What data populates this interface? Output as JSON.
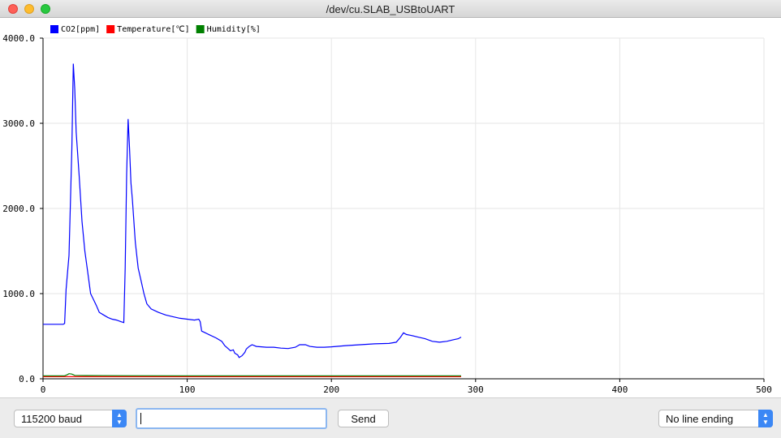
{
  "window": {
    "title": "/dev/cu.SLAB_USBtoUART"
  },
  "controls": {
    "baud": "115200 baud",
    "send_label": "Send",
    "input_value": "",
    "line_ending": "No line ending"
  },
  "chart_data": {
    "type": "line",
    "xlim": [
      0,
      500
    ],
    "ylim": [
      0,
      4000
    ],
    "x_ticks": [
      "0",
      "100",
      "200",
      "300",
      "400",
      "500"
    ],
    "y_ticks": [
      "0.0",
      "1000.0",
      "2000.0",
      "3000.0",
      "4000.0"
    ],
    "y_tick_values": [
      0,
      1000,
      2000,
      3000,
      4000
    ],
    "x_tick_values": [
      0,
      100,
      200,
      300,
      400,
      500
    ],
    "grid": true,
    "legend_position": "top-left",
    "series": [
      {
        "name": "CO2[ppm]",
        "color": "#0000ff",
        "points": [
          [
            0,
            640
          ],
          [
            14,
            640
          ],
          [
            15,
            650
          ],
          [
            16,
            1050
          ],
          [
            18,
            1450
          ],
          [
            20,
            2700
          ],
          [
            21,
            3700
          ],
          [
            22,
            3400
          ],
          [
            23,
            2900
          ],
          [
            25,
            2400
          ],
          [
            27,
            1850
          ],
          [
            29,
            1500
          ],
          [
            31,
            1250
          ],
          [
            33,
            1000
          ],
          [
            35,
            930
          ],
          [
            37,
            860
          ],
          [
            39,
            780
          ],
          [
            42,
            750
          ],
          [
            45,
            720
          ],
          [
            48,
            700
          ],
          [
            51,
            690
          ],
          [
            54,
            670
          ],
          [
            56,
            660
          ],
          [
            57,
            1300
          ],
          [
            58,
            2400
          ],
          [
            59,
            3050
          ],
          [
            60,
            2700
          ],
          [
            61,
            2300
          ],
          [
            62,
            2100
          ],
          [
            64,
            1600
          ],
          [
            66,
            1300
          ],
          [
            68,
            1150
          ],
          [
            70,
            1000
          ],
          [
            72,
            880
          ],
          [
            75,
            820
          ],
          [
            80,
            780
          ],
          [
            85,
            750
          ],
          [
            90,
            730
          ],
          [
            95,
            710
          ],
          [
            100,
            700
          ],
          [
            105,
            690
          ],
          [
            108,
            700
          ],
          [
            109,
            670
          ],
          [
            110,
            560
          ],
          [
            115,
            520
          ],
          [
            120,
            480
          ],
          [
            124,
            440
          ],
          [
            126,
            390
          ],
          [
            128,
            360
          ],
          [
            130,
            330
          ],
          [
            132,
            340
          ],
          [
            133,
            300
          ],
          [
            135,
            280
          ],
          [
            136,
            250
          ],
          [
            138,
            270
          ],
          [
            140,
            310
          ],
          [
            141,
            350
          ],
          [
            143,
            380
          ],
          [
            145,
            400
          ],
          [
            148,
            380
          ],
          [
            155,
            370
          ],
          [
            160,
            370
          ],
          [
            165,
            360
          ],
          [
            170,
            355
          ],
          [
            175,
            370
          ],
          [
            178,
            400
          ],
          [
            182,
            400
          ],
          [
            185,
            380
          ],
          [
            190,
            370
          ],
          [
            195,
            370
          ],
          [
            200,
            375
          ],
          [
            210,
            390
          ],
          [
            220,
            400
          ],
          [
            230,
            410
          ],
          [
            240,
            415
          ],
          [
            245,
            430
          ],
          [
            248,
            490
          ],
          [
            250,
            540
          ],
          [
            252,
            520
          ],
          [
            255,
            510
          ],
          [
            260,
            490
          ],
          [
            265,
            470
          ],
          [
            270,
            440
          ],
          [
            275,
            430
          ],
          [
            280,
            440
          ],
          [
            285,
            460
          ],
          [
            288,
            470
          ],
          [
            290,
            490
          ]
        ]
      },
      {
        "name": "Temperature[℃]",
        "color": "#ff0000",
        "points": [
          [
            0,
            25
          ],
          [
            50,
            25
          ],
          [
            100,
            25
          ],
          [
            150,
            25
          ],
          [
            200,
            25
          ],
          [
            250,
            25
          ],
          [
            290,
            25
          ]
        ]
      },
      {
        "name": "Humidity[%]",
        "color": "#008000",
        "points": [
          [
            0,
            35
          ],
          [
            15,
            35
          ],
          [
            17,
            50
          ],
          [
            18,
            60
          ],
          [
            20,
            55
          ],
          [
            22,
            40
          ],
          [
            30,
            38
          ],
          [
            60,
            36
          ],
          [
            100,
            35
          ],
          [
            150,
            35
          ],
          [
            200,
            35
          ],
          [
            250,
            35
          ],
          [
            290,
            35
          ]
        ]
      }
    ]
  }
}
